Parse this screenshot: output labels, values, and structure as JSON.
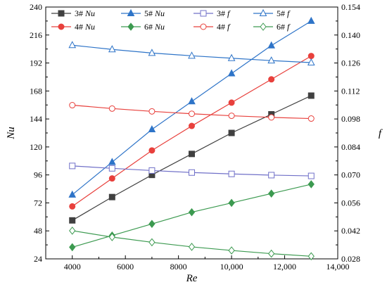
{
  "chart_data": {
    "type": "line",
    "xlabel": "Re",
    "ylabel_left": "Nu",
    "ylabel_right": "f",
    "xlim": [
      3000,
      14000
    ],
    "xticks": [
      4000,
      6000,
      8000,
      10000,
      12000,
      14000
    ],
    "xtick_labels": [
      "4000",
      "6000",
      "8000",
      "10,000",
      "12,000",
      "14,000"
    ],
    "ylim_left": [
      24,
      240
    ],
    "yticks_left": [
      24,
      48,
      72,
      96,
      120,
      144,
      168,
      192,
      216,
      240
    ],
    "ylim_right": [
      0.028,
      0.154
    ],
    "yticks_right": [
      0.028,
      0.042,
      0.056,
      0.07,
      0.084,
      0.098,
      0.112,
      0.126,
      0.14,
      0.154
    ],
    "ytick_labels_right": [
      "0.028",
      "0.042",
      "0.056",
      "0.070",
      "0.084",
      "0.098",
      "0.112",
      "0.126",
      "0.140",
      "0.154"
    ],
    "grid": false,
    "legend_placement": "top-inside",
    "x": [
      4000,
      5500,
      7000,
      8500,
      10000,
      11500,
      13000
    ],
    "series": [
      {
        "name": "3# Nu",
        "label": "3#",
        "qty": "Nu",
        "axis": "left",
        "color": "#404040",
        "marker": "square-filled",
        "values": [
          57,
          77,
          96,
          114,
          132,
          148,
          164
        ]
      },
      {
        "name": "4# Nu",
        "label": "4#",
        "qty": "Nu",
        "axis": "left",
        "color": "#e8403c",
        "marker": "circle-filled",
        "values": [
          69,
          93,
          117,
          138,
          158,
          178,
          198
        ]
      },
      {
        "name": "5# Nu",
        "label": "5#",
        "qty": "Nu",
        "axis": "left",
        "color": "#2e74c8",
        "marker": "triangle-filled",
        "values": [
          79,
          107,
          135,
          159,
          183,
          207,
          228
        ]
      },
      {
        "name": "6# Nu",
        "label": "6#",
        "qty": "Nu",
        "axis": "left",
        "color": "#3c9a50",
        "marker": "diamond-filled",
        "values": [
          34,
          44,
          54,
          64,
          72,
          80,
          88
        ]
      },
      {
        "name": "3# f",
        "label": "3#",
        "qty": "f",
        "axis": "right",
        "color": "#7070c8",
        "marker": "square-open",
        "values": [
          0.0745,
          0.0733,
          0.0722,
          0.0712,
          0.0705,
          0.0699,
          0.0695
        ]
      },
      {
        "name": "4# f",
        "label": "4#",
        "qty": "f",
        "axis": "right",
        "color": "#e8403c",
        "marker": "circle-open",
        "values": [
          0.1049,
          0.1032,
          0.1018,
          0.1006,
          0.0996,
          0.0988,
          0.0982
        ]
      },
      {
        "name": "5# f",
        "label": "5#",
        "qty": "f",
        "axis": "right",
        "color": "#2e74c8",
        "marker": "triangle-open",
        "values": [
          0.1349,
          0.1328,
          0.131,
          0.1296,
          0.1284,
          0.1272,
          0.1262
        ]
      },
      {
        "name": "6# f",
        "label": "6#",
        "qty": "f",
        "axis": "right",
        "color": "#3c9a50",
        "marker": "diamond-open",
        "values": [
          0.0421,
          0.0389,
          0.0363,
          0.034,
          0.0322,
          0.0306,
          0.0293
        ]
      }
    ]
  }
}
